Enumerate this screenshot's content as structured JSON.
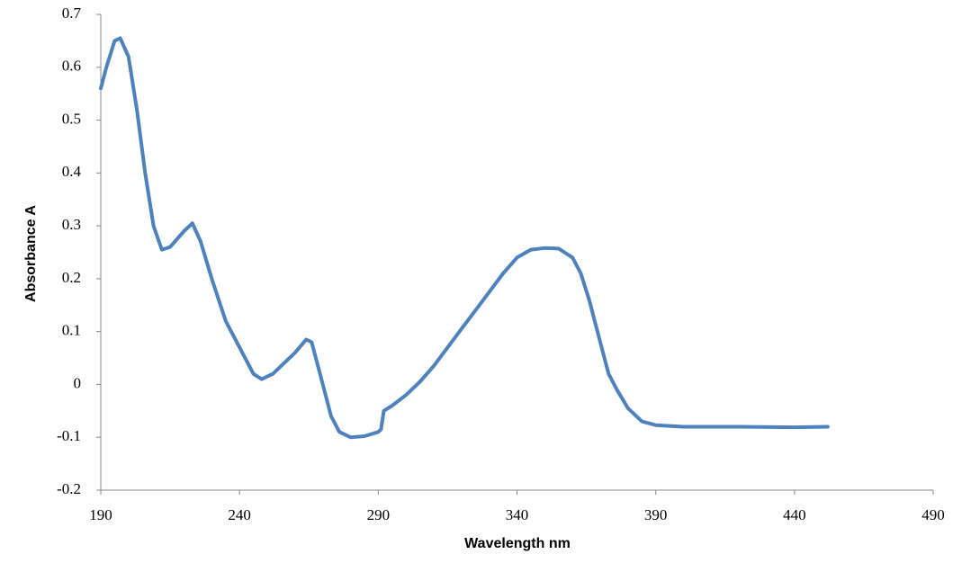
{
  "chart_data": {
    "type": "line",
    "x_label": "Wavelength nm",
    "y_label": "Absorbance A",
    "xlim": [
      190,
      490
    ],
    "xticks": [
      190,
      240,
      290,
      340,
      390,
      440,
      490
    ],
    "ylim": [
      -0.2,
      0.7
    ],
    "yticks": [
      -0.2,
      -0.1,
      0,
      0.1,
      0.2,
      0.3,
      0.4,
      0.5,
      0.6,
      0.7
    ],
    "grid": false,
    "series": [
      {
        "color": "#4f81bd",
        "x": [
          190,
          192,
          195,
          197,
          200,
          203,
          206,
          209,
          212,
          215,
          220,
          223,
          226,
          230,
          235,
          240,
          245,
          248,
          252,
          256,
          260,
          264,
          266,
          268,
          270,
          273,
          276,
          280,
          285,
          290,
          291,
          292,
          295,
          300,
          305,
          310,
          315,
          320,
          325,
          330,
          335,
          340,
          345,
          350,
          355,
          360,
          363,
          366,
          370,
          373,
          376,
          380,
          385,
          390,
          400,
          420,
          440,
          452
        ],
        "values": [
          0.56,
          0.6,
          0.65,
          0.655,
          0.62,
          0.52,
          0.4,
          0.3,
          0.255,
          0.26,
          0.29,
          0.305,
          0.27,
          0.2,
          0.12,
          0.07,
          0.02,
          0.01,
          0.02,
          0.04,
          0.06,
          0.085,
          0.08,
          0.04,
          0.0,
          -0.06,
          -0.09,
          -0.1,
          -0.098,
          -0.09,
          -0.085,
          -0.05,
          -0.04,
          -0.02,
          0.005,
          0.035,
          0.07,
          0.105,
          0.14,
          0.175,
          0.21,
          0.24,
          0.255,
          0.258,
          0.257,
          0.24,
          0.21,
          0.16,
          0.08,
          0.02,
          -0.01,
          -0.045,
          -0.07,
          -0.077,
          -0.08,
          -0.08,
          -0.081,
          -0.08
        ]
      }
    ]
  }
}
